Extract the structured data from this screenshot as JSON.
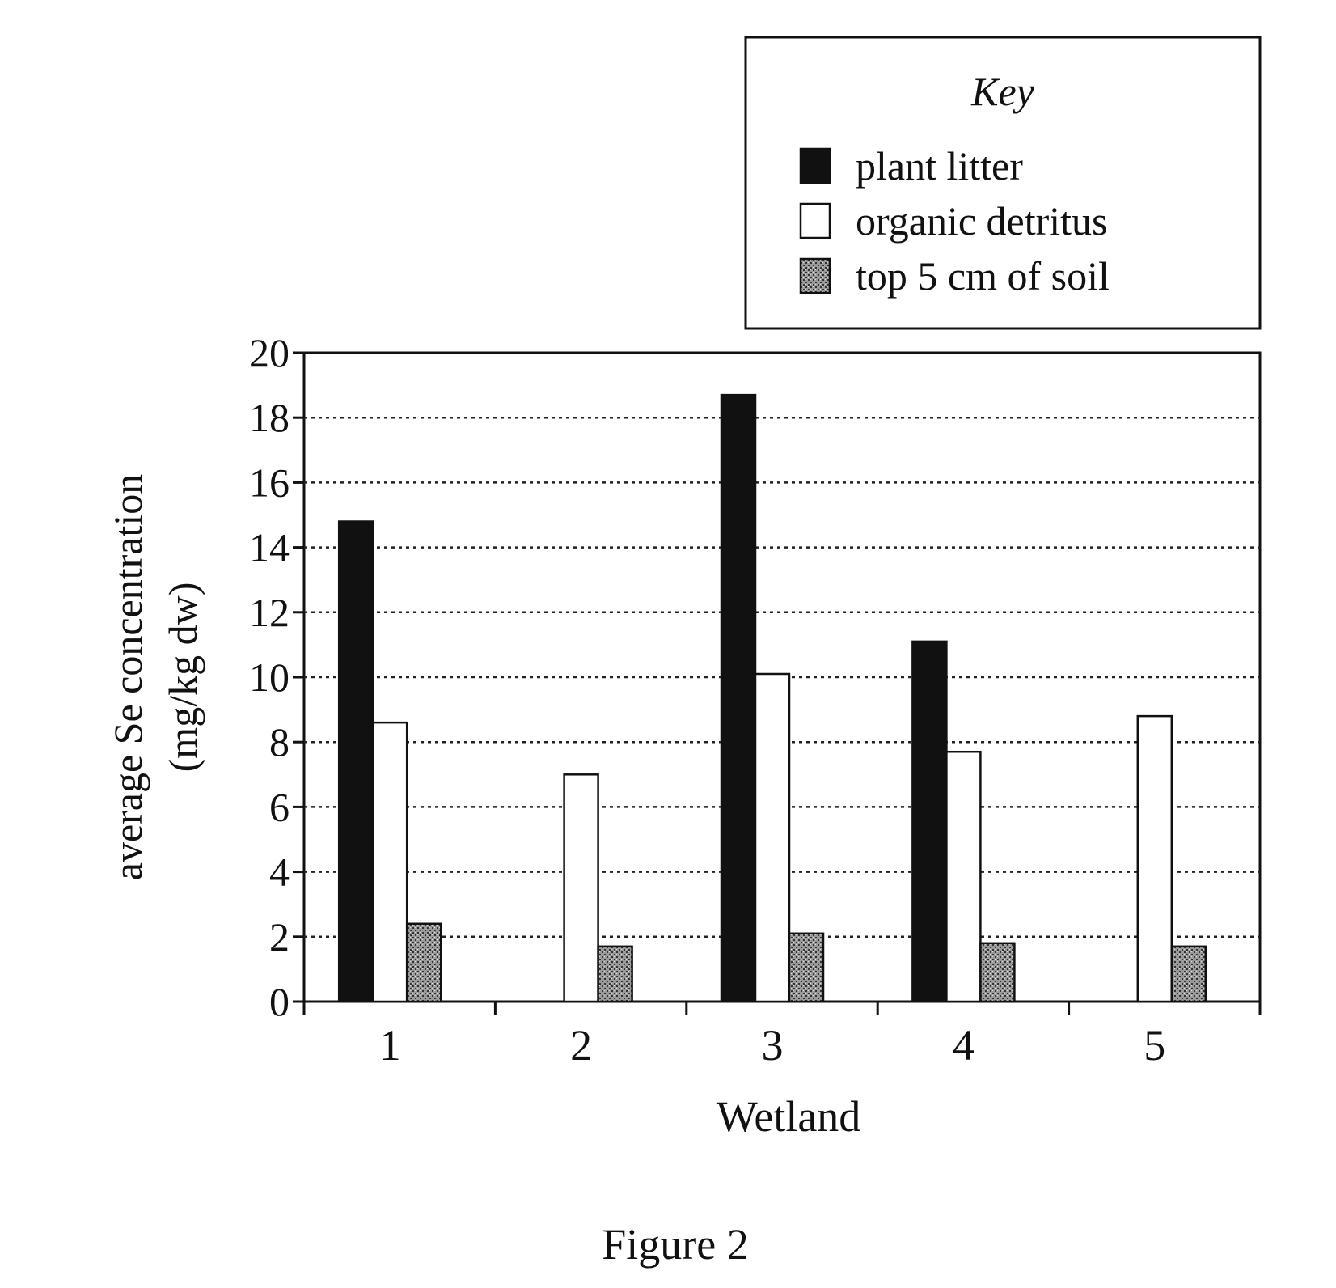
{
  "chart_data": {
    "type": "bar",
    "xlabel": "Wetland",
    "ylabel_lines": [
      "average Se concentration",
      "(mg/kg dw)"
    ],
    "caption": "Figure 2",
    "ylim": [
      0,
      20
    ],
    "yticks": [
      0,
      2,
      4,
      6,
      8,
      10,
      12,
      14,
      16,
      18,
      20
    ],
    "grid": "horizontal dotted",
    "legend": {
      "title": "Key",
      "placement": "top-right, above plot"
    },
    "categories": [
      "1",
      "2",
      "3",
      "4",
      "5"
    ],
    "series": [
      {
        "name": "plant litter",
        "fill": "#111111",
        "pattern": "solid",
        "values": [
          14.8,
          0,
          18.7,
          11.1,
          0
        ]
      },
      {
        "name": "organic detritus",
        "fill": "#ffffff",
        "pattern": "open",
        "values": [
          8.6,
          7.0,
          10.1,
          7.7,
          8.8
        ]
      },
      {
        "name": "top 5 cm of soil",
        "fill": "#8a8a8a",
        "pattern": "stippled",
        "values": [
          2.4,
          1.7,
          2.1,
          1.8,
          1.7
        ]
      }
    ]
  }
}
